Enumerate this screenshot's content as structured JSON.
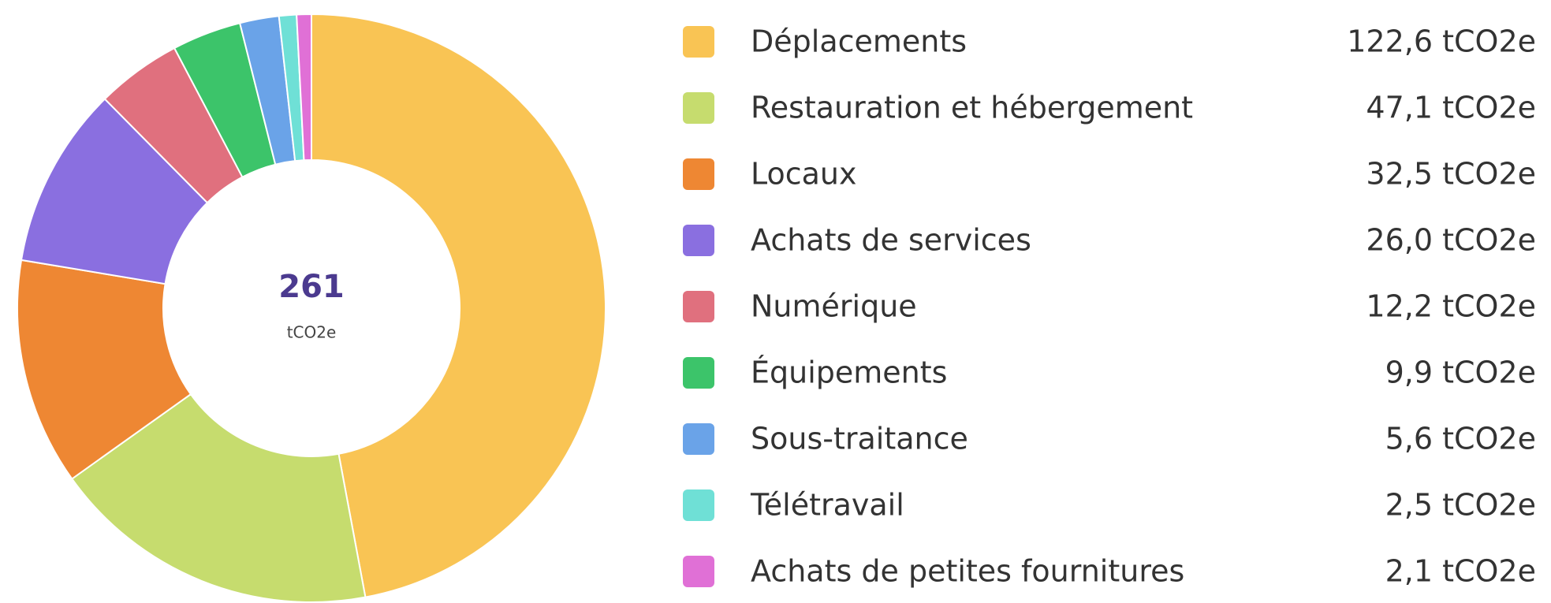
{
  "chart_data": {
    "type": "donut",
    "total": 261,
    "unit": "tCO2e",
    "categories": [
      "Déplacements",
      "Restauration et hébergement",
      "Locaux",
      "Achats de services",
      "Numérique",
      "Équipements",
      "Sous-traitance",
      "Télétravail",
      "Achats de petites fournitures"
    ],
    "values": [
      122.6,
      47.1,
      32.5,
      26.0,
      12.2,
      9.9,
      5.6,
      2.5,
      2.1
    ],
    "value_labels": [
      "122,6 tCO2e",
      "47,1 tCO2e",
      "32,5 tCO2e",
      "26,0 tCO2e",
      "12,2 tCO2e",
      "9,9 tCO2e",
      "5,6 tCO2e",
      "2,5 tCO2e",
      "2,1 tCO2e"
    ],
    "colors": [
      "#f9c454",
      "#c6dc6e",
      "#ee8733",
      "#8a6fe0",
      "#e0707e",
      "#3cc46a",
      "#6aa3e8",
      "#6fe0d6",
      "#e070d6"
    ],
    "legend": "right"
  }
}
